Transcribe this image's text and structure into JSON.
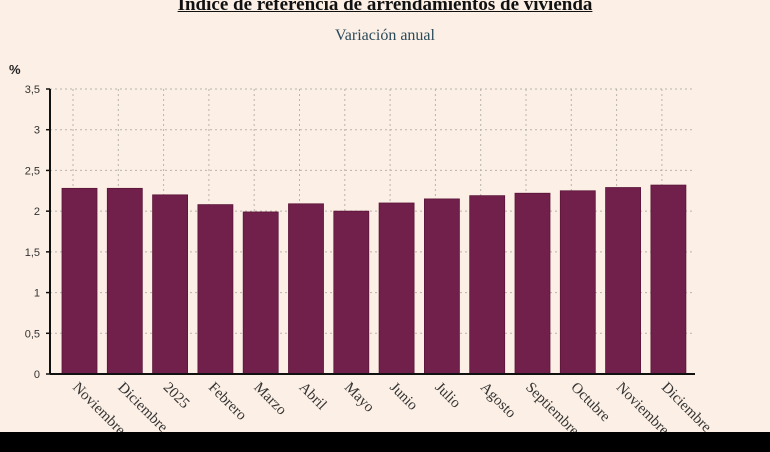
{
  "chart_data": {
    "type": "bar",
    "title": "Índice de referencia de arrendamientos de vivienda",
    "subtitle": "Variación anual",
    "ylabel": "%",
    "ylim": [
      0,
      3.5
    ],
    "yticks": [
      "0",
      "0,5",
      "1",
      "1,5",
      "2",
      "2,5",
      "3",
      "3,5"
    ],
    "grid": true,
    "categories": [
      "Noviembre",
      "Diciembre",
      "2025",
      "Febrero",
      "Marzo",
      "Abril",
      "Mayo",
      "Junio",
      "Julio",
      "Agosto",
      "Septiembre",
      "Octubre",
      "Noviembre",
      "Diciembre"
    ],
    "values": [
      2.28,
      2.28,
      2.2,
      2.08,
      1.99,
      2.09,
      2.0,
      2.1,
      2.15,
      2.19,
      2.22,
      2.25,
      2.29,
      2.32
    ],
    "bar_color": "#71204b"
  }
}
